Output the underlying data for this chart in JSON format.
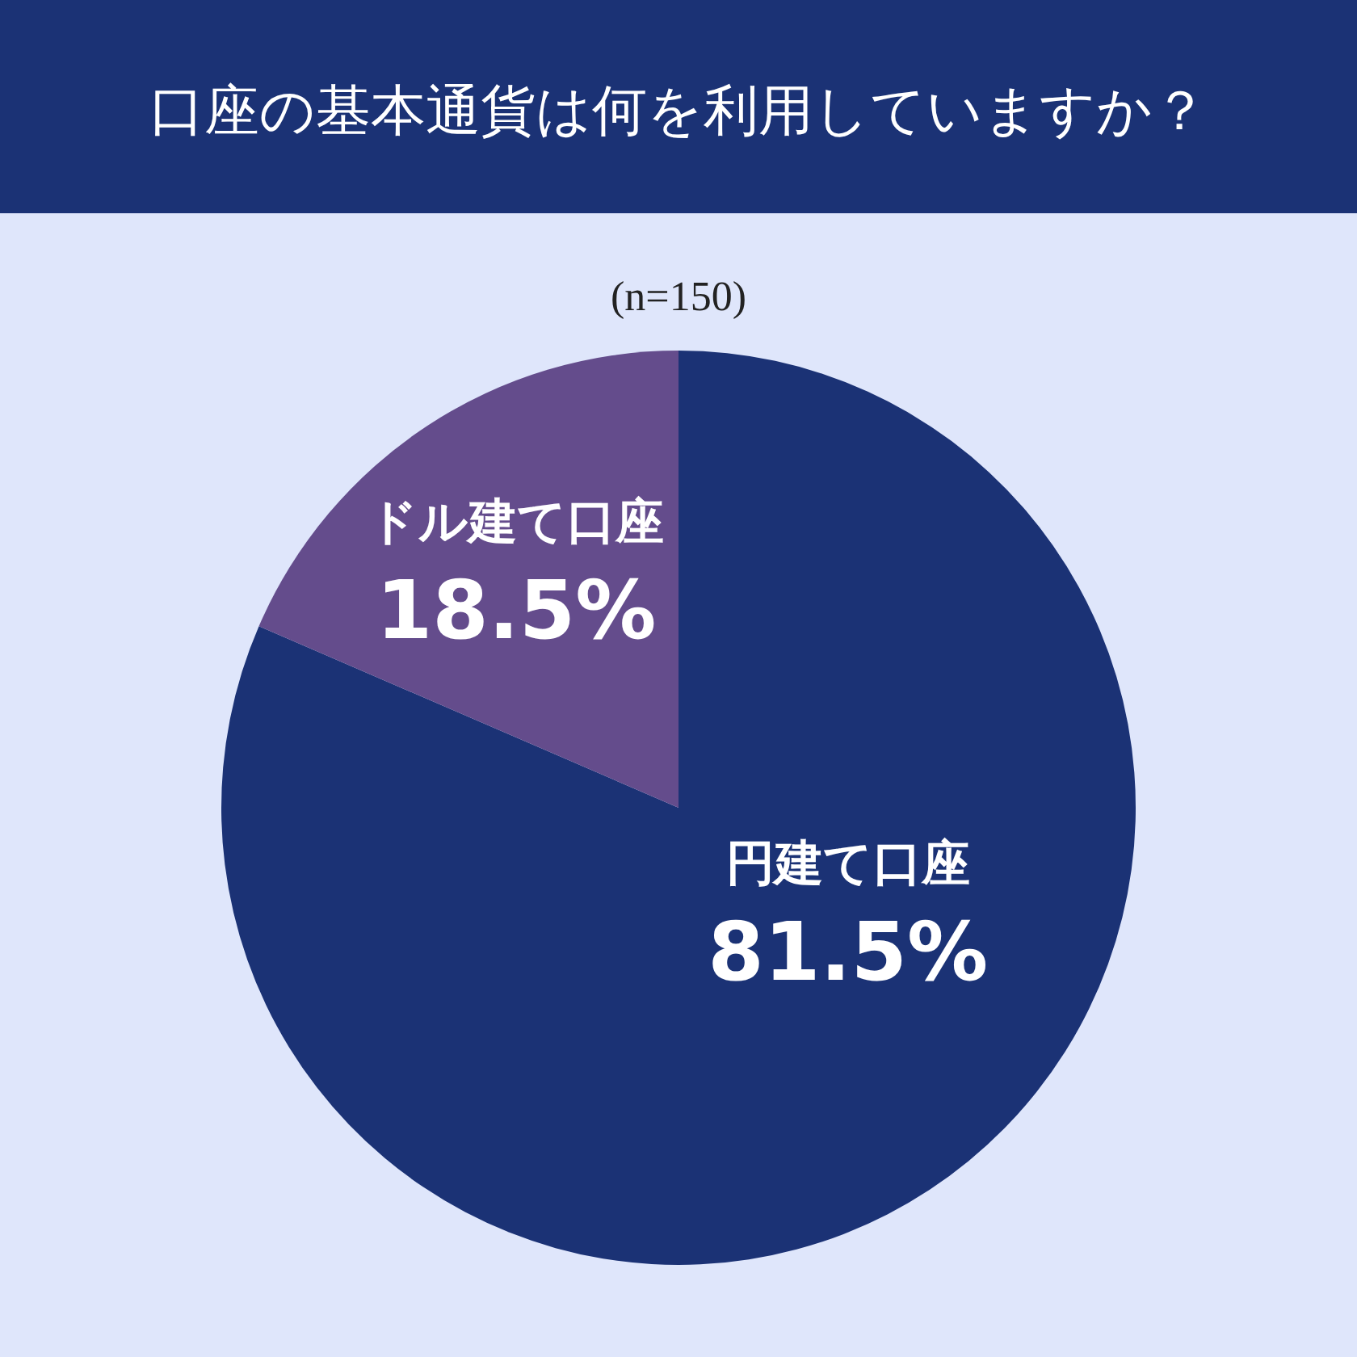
{
  "chart_data": {
    "type": "pie",
    "title": "口座の基本通貨は何を利用していますか？",
    "subtitle": "(n=150)",
    "categories": [
      "円建て口座",
      "ドル建て口座"
    ],
    "values": [
      81.5,
      18.5
    ],
    "value_labels": [
      "81.5%",
      "18.5%"
    ],
    "colors": [
      "#1b3275",
      "#644c8c"
    ]
  }
}
